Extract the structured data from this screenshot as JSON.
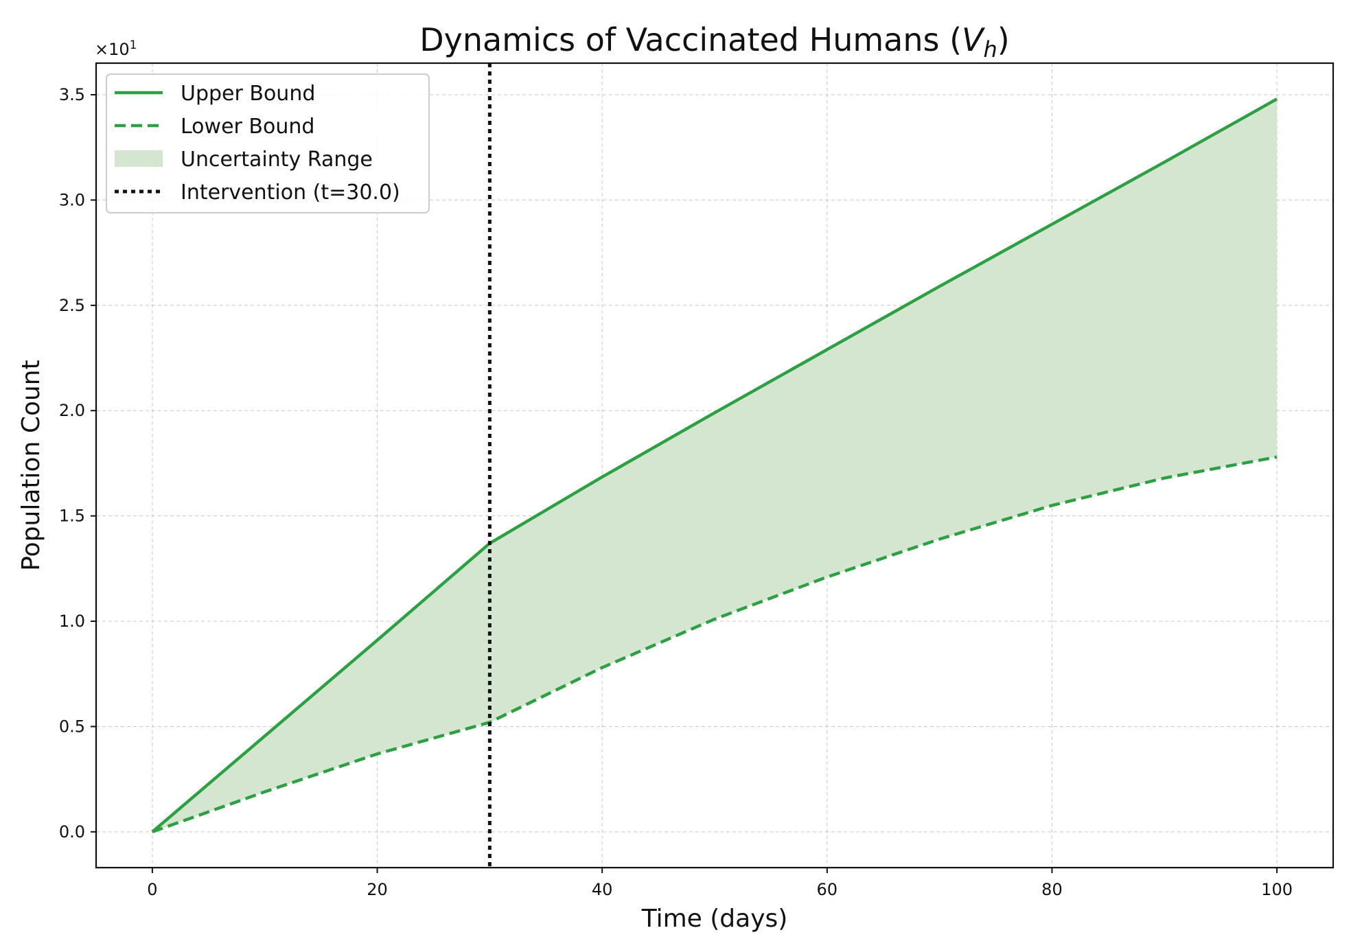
{
  "chart_data": {
    "type": "line",
    "title_main": "Dynamics of Vaccinated Humans (",
    "title_var": "V",
    "title_sub": "h",
    "title_close": ")",
    "xlabel": "Time (days)",
    "ylabel": "Population Count",
    "y_multiplier": "×10",
    "y_multiplier_exp": "1",
    "xlim": [
      -5,
      105
    ],
    "ylim": [
      -0.17,
      3.65
    ],
    "x_ticks": [
      0,
      20,
      40,
      60,
      80,
      100
    ],
    "x_tick_labels": [
      "0",
      "20",
      "40",
      "60",
      "80",
      "100"
    ],
    "y_ticks": [
      0.0,
      0.5,
      1.0,
      1.5,
      2.0,
      2.5,
      3.0,
      3.5
    ],
    "y_tick_labels": [
      "0.0",
      "0.5",
      "1.0",
      "1.5",
      "2.0",
      "2.5",
      "3.0",
      "3.5"
    ],
    "grid": true,
    "legend_position": "top-left",
    "intervention_x": 30,
    "series": [
      {
        "name": "Upper Bound",
        "style": "solid",
        "color": "#2ca043",
        "x": [
          0,
          10,
          20,
          30,
          40,
          50,
          60,
          70,
          80,
          90,
          100
        ],
        "y": [
          0.0,
          0.455,
          0.91,
          1.37,
          1.685,
          1.99,
          2.29,
          2.59,
          2.885,
          3.18,
          3.48
        ]
      },
      {
        "name": "Lower Bound",
        "style": "dashed",
        "color": "#2ca043",
        "x": [
          0,
          10,
          20,
          30,
          40,
          50,
          60,
          70,
          80,
          90,
          100
        ],
        "y": [
          0.0,
          0.19,
          0.37,
          0.52,
          0.78,
          1.01,
          1.21,
          1.39,
          1.55,
          1.68,
          1.78
        ]
      }
    ],
    "legend": [
      {
        "label": "Upper Bound",
        "kind": "solid",
        "color": "#2ca043"
      },
      {
        "label": "Lower Bound",
        "kind": "dashed",
        "color": "#2ca043"
      },
      {
        "label": "Uncertainty Range",
        "kind": "fill",
        "color": "#d5e6d0"
      },
      {
        "label": "Intervention (t=30.0)",
        "kind": "dotted",
        "color": "#111111"
      }
    ],
    "fill_color": "#d5e6d0",
    "line_color": "#2ca043",
    "intervention_color": "#111111"
  }
}
